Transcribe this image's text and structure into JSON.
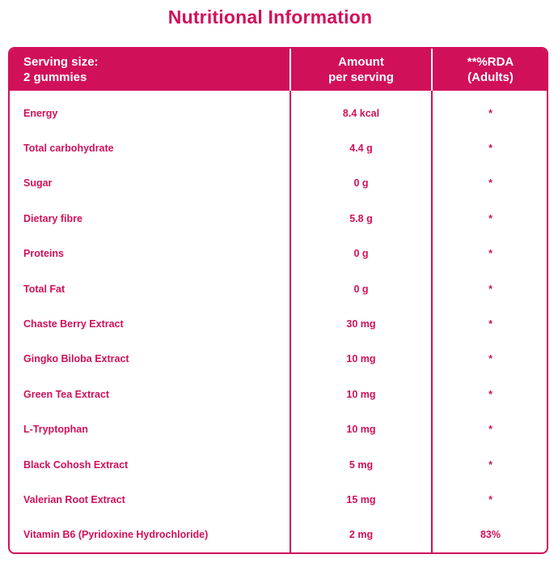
{
  "title": "Nutritional Information",
  "colors": {
    "accent": "#d1105a",
    "header_text": "#ffffff"
  },
  "header": {
    "col1_line1": "Serving size:",
    "col1_line2": "2 gummies",
    "col2_line1": "Amount",
    "col2_line2": "per serving",
    "col3_line1": "**%RDA",
    "col3_line2": "(Adults)"
  },
  "rows": [
    {
      "name": "Energy",
      "amount": "8.4 kcal",
      "rda": "*"
    },
    {
      "name": "Total carbohydrate",
      "amount": "4.4 g",
      "rda": "*"
    },
    {
      "name": "Sugar",
      "amount": "0 g",
      "rda": "*"
    },
    {
      "name": "Dietary fibre",
      "amount": "5.8 g",
      "rda": "*"
    },
    {
      "name": "Proteins",
      "amount": "0 g",
      "rda": "*"
    },
    {
      "name": "Total Fat",
      "amount": "0 g",
      "rda": "*"
    },
    {
      "name": "Chaste Berry Extract",
      "amount": "30 mg",
      "rda": "*"
    },
    {
      "name": "Gingko Biloba Extract",
      "amount": "10 mg",
      "rda": "*"
    },
    {
      "name": "Green Tea Extract",
      "amount": "10 mg",
      "rda": "*"
    },
    {
      "name": "L-Tryptophan",
      "amount": "10 mg",
      "rda": "*"
    },
    {
      "name": "Black Cohosh Extract",
      "amount": "5 mg",
      "rda": "*"
    },
    {
      "name": "Valerian Root Extract",
      "amount": "15 mg",
      "rda": "*"
    },
    {
      "name": "Vitamin B6 (Pyridoxine Hydrochloride)",
      "amount": "2 mg",
      "rda": "83%"
    }
  ]
}
